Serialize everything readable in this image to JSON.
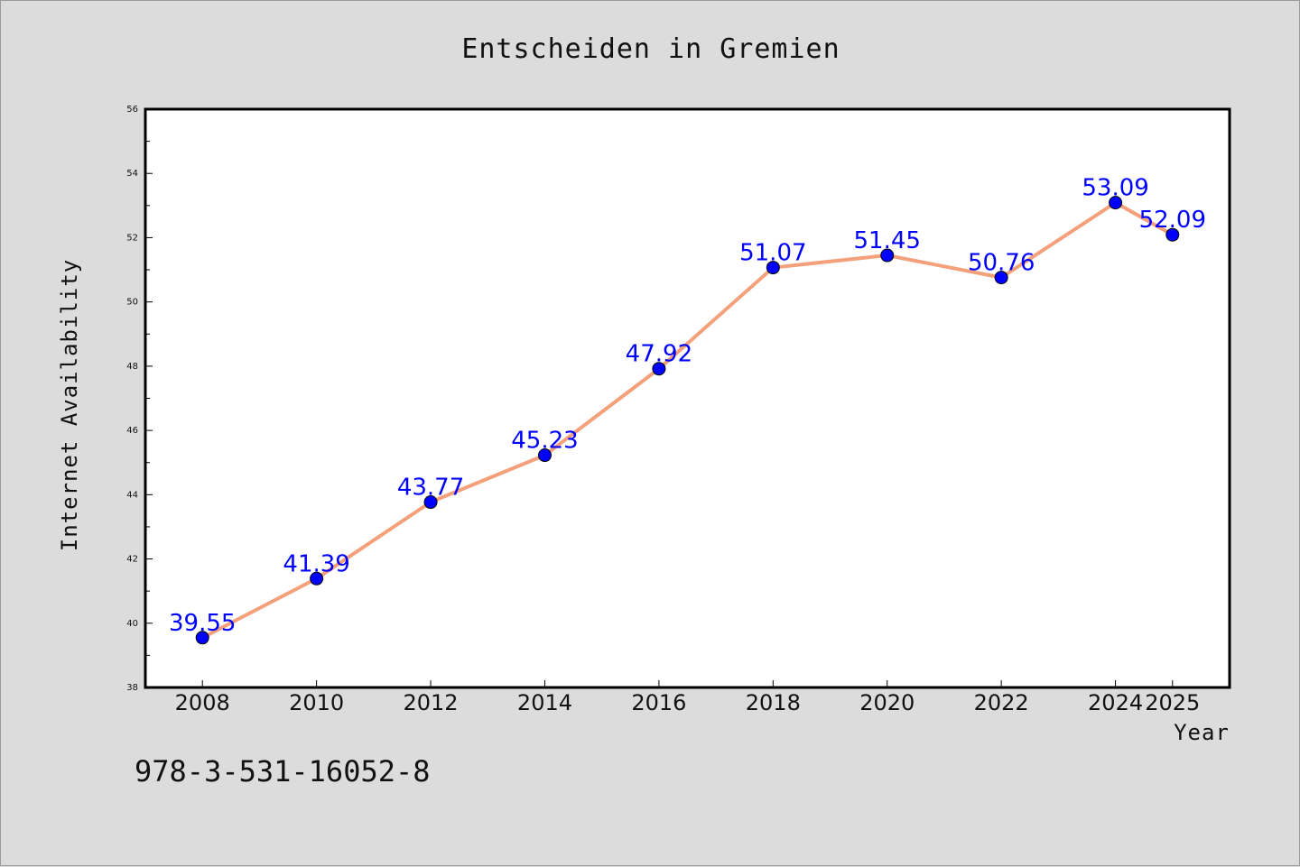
{
  "chart_data": {
    "type": "line",
    "title": "Entscheiden in Gremien",
    "xlabel": "Year",
    "ylabel": "Internet Availability",
    "x": [
      2008,
      2010,
      2012,
      2014,
      2016,
      2018,
      2020,
      2022,
      2024,
      2025
    ],
    "x_tick_labels": [
      "2008",
      "2010",
      "2012",
      "2014",
      "2016",
      "2018",
      "2020",
      "2022",
      "2024",
      "2025"
    ],
    "y_ticks": [
      38,
      40,
      42,
      44,
      46,
      48,
      50,
      52,
      54,
      56
    ],
    "ylim": [
      38,
      56
    ],
    "series": [
      {
        "values": [
          39.55,
          41.39,
          43.77,
          45.23,
          47.92,
          51.07,
          51.45,
          50.76,
          53.09,
          52.09
        ],
        "data_labels": [
          "39.55",
          "41.39",
          "43.77",
          "45.23",
          "47.92",
          "51.07",
          "51.45",
          "50.76",
          "53.09",
          "52.09"
        ],
        "line_color": "#f4a07a",
        "marker_color": "#0000ff"
      }
    ],
    "grid": false,
    "legend": "none"
  },
  "footer": {
    "code": "978-3-531-16052-8"
  },
  "colors": {
    "background": "#dcdcdc",
    "plot_background": "#ffffff",
    "data_label": "#0000ff"
  }
}
